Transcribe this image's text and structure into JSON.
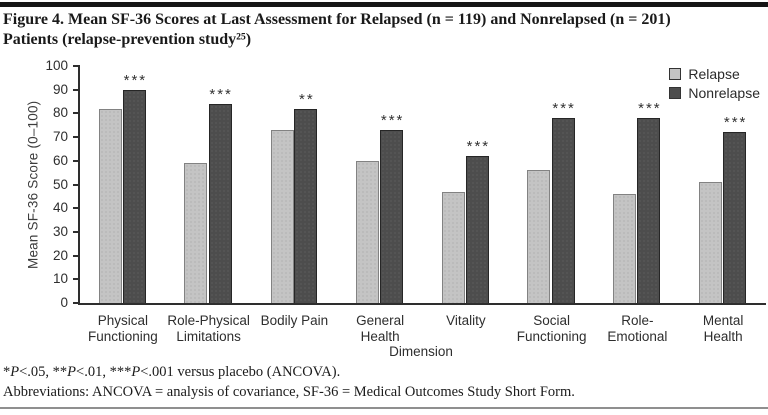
{
  "figure": {
    "title": "Figure 4. Mean SF-36 Scores at Last Assessment for Relapsed (n = 119) and Nonrelapsed (n = 201)\nPatients (relapse-prevention study²⁵)"
  },
  "chart_data": {
    "type": "bar",
    "categories": [
      "Physical Functioning",
      "Role-Physical Limitations",
      "Bodily Pain",
      "General Health",
      "Vitality",
      "Social Functioning",
      "Role-Emotional",
      "Mental Health"
    ],
    "categories_wrapped": [
      "Physical\nFunctioning",
      "Role-Physical\nLimitations",
      "Bodily Pain",
      "General\nHealth",
      "Vitality",
      "Social\nFunctioning",
      "Role-\nEmotional",
      "Mental\nHealth"
    ],
    "series": [
      {
        "name": "Relapse",
        "color": "#c4c4c4",
        "values": [
          82,
          59,
          73,
          60,
          47,
          56,
          46,
          51
        ]
      },
      {
        "name": "Nonrelapse",
        "color": "#4d4d4d",
        "values": [
          90,
          84,
          82,
          73,
          62,
          78,
          78,
          72
        ]
      }
    ],
    "significance": [
      "***",
      "***",
      "**",
      "***",
      "***",
      "***",
      "***",
      "***"
    ],
    "xlabel": "Dimension",
    "ylabel": "Mean SF-36 Score (0–100)",
    "ylim": [
      0,
      100
    ],
    "ytick_step": 10,
    "legend_position": "top-right",
    "grid": false
  },
  "footnotes": {
    "significance_segments": [
      {
        "text": "*",
        "italic": false
      },
      {
        "text": "P",
        "italic": true
      },
      {
        "text": "<.05, **",
        "italic": false
      },
      {
        "text": "P",
        "italic": true
      },
      {
        "text": "<.01, ***",
        "italic": false
      },
      {
        "text": "P",
        "italic": true
      },
      {
        "text": "<.001 versus placebo (ANCOVA).",
        "italic": false
      }
    ],
    "abbreviations_line": "Abbreviations: ANCOVA = analysis of covariance, SF-36 = Medical Outcomes Study Short Form."
  }
}
